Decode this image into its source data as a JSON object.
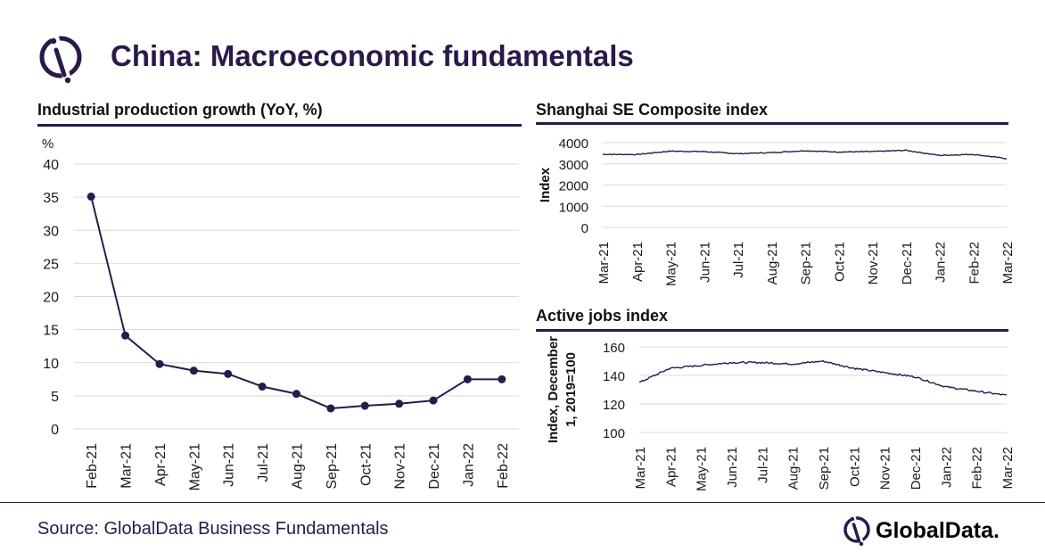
{
  "header": {
    "title": "China: Macroeconomic fundamentals",
    "logo_icon": "globaldata-logo-icon"
  },
  "colors": {
    "accent": "#2a1a4a",
    "series": "#2a1a4a",
    "grid": "#d9d9d9"
  },
  "footer": {
    "source": "Source: GlobalData Business Fundamentals",
    "brand": "GlobalData."
  },
  "chart_data": [
    {
      "type": "line",
      "title": "Industrial production growth (YoY, %)",
      "unit_label": "%",
      "ylabel": "",
      "xlabel": "",
      "categories": [
        "Feb-21",
        "Mar-21",
        "Apr-21",
        "May-21",
        "Jun-21",
        "Jul-21",
        "Aug-21",
        "Sep-21",
        "Oct-21",
        "Nov-21",
        "Dec-21",
        "Jan-22",
        "Feb-22"
      ],
      "values": [
        35.1,
        14.1,
        9.8,
        8.8,
        8.3,
        6.4,
        5.3,
        3.1,
        3.5,
        3.8,
        4.3,
        7.5,
        7.5
      ],
      "markers": true,
      "ylim": [
        0,
        40
      ],
      "yticks": [
        0,
        5,
        10,
        15,
        20,
        25,
        30,
        35,
        40
      ],
      "grid": true
    },
    {
      "type": "line",
      "title": "Shanghai SE Composite index",
      "ylabel": "Index",
      "xlabel": "",
      "x_tick_labels": [
        "Mar-21",
        "Apr-21",
        "May-21",
        "Jun-21",
        "Jul-21",
        "Aug-21",
        "Sep-21",
        "Oct-21",
        "Nov-21",
        "Dec-21",
        "Jan-22",
        "Feb-22",
        "Mar-22"
      ],
      "x": [
        "Mar-21",
        "Apr-21",
        "May-21",
        "Jun-21",
        "Jul-21",
        "Aug-21",
        "Sep-21",
        "Oct-21",
        "Nov-21",
        "Dec-21",
        "Jan-22",
        "Feb-22",
        "Mar-22"
      ],
      "values": [
        3450,
        3440,
        3600,
        3580,
        3480,
        3530,
        3620,
        3560,
        3580,
        3640,
        3400,
        3450,
        3250
      ],
      "ylim": [
        0,
        4000
      ],
      "yticks": [
        0,
        1000,
        2000,
        3000,
        4000
      ],
      "grid": true
    },
    {
      "type": "line",
      "title": "Active jobs index",
      "ylabel": "Index, December 1, 2019=100",
      "xlabel": "",
      "x_tick_labels": [
        "Mar-21",
        "Apr-21",
        "May-21",
        "Jun-21",
        "Jul-21",
        "Aug-21",
        "Sep-21",
        "Oct-21",
        "Nov-21",
        "Dec-21",
        "Jan-22",
        "Feb-22",
        "Mar-22"
      ],
      "x": [
        "Mar-21",
        "Apr-21",
        "May-21",
        "Jun-21",
        "Jul-21",
        "Aug-21",
        "Sep-21",
        "Oct-21",
        "Nov-21",
        "Dec-21",
        "Jan-22",
        "Feb-22",
        "Mar-22"
      ],
      "values": [
        135,
        145,
        147,
        149,
        149,
        148,
        150,
        145,
        142,
        139,
        132,
        129,
        126
      ],
      "ylim": [
        100,
        160
      ],
      "yticks": [
        100,
        120,
        140,
        160
      ],
      "grid": true
    }
  ]
}
